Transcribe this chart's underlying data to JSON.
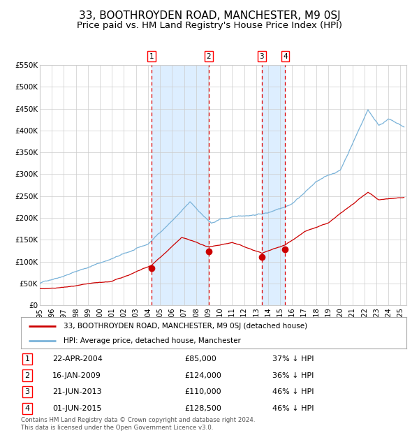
{
  "title": "33, BOOTHROYDEN ROAD, MANCHESTER, M9 0SJ",
  "subtitle": "Price paid vs. HM Land Registry's House Price Index (HPI)",
  "legend_label_red": "33, BOOTHROYDEN ROAD, MANCHESTER, M9 0SJ (detached house)",
  "legend_label_blue": "HPI: Average price, detached house, Manchester",
  "footer_line1": "Contains HM Land Registry data © Crown copyright and database right 2024.",
  "footer_line2": "This data is licensed under the Open Government Licence v3.0.",
  "transactions": [
    {
      "num": 1,
      "date": "22-APR-2004",
      "price": 85000,
      "pct": "37% ↓ HPI"
    },
    {
      "num": 2,
      "date": "16-JAN-2009",
      "price": 124000,
      "pct": "36% ↓ HPI"
    },
    {
      "num": 3,
      "date": "21-JUN-2013",
      "price": 110000,
      "pct": "46% ↓ HPI"
    },
    {
      "num": 4,
      "date": "01-JUN-2015",
      "price": 128500,
      "pct": "46% ↓ HPI"
    }
  ],
  "transaction_dates_decimal": [
    2004.31,
    2009.04,
    2013.47,
    2015.42
  ],
  "transaction_prices": [
    85000,
    124000,
    110000,
    128500
  ],
  "ylim": [
    0,
    550000
  ],
  "xlim_start": 1995.0,
  "xlim_end": 2025.5,
  "yticks": [
    0,
    50000,
    100000,
    150000,
    200000,
    250000,
    300000,
    350000,
    400000,
    450000,
    500000,
    550000
  ],
  "ytick_labels": [
    "£0",
    "£50K",
    "£100K",
    "£150K",
    "£200K",
    "£250K",
    "£300K",
    "£350K",
    "£400K",
    "£450K",
    "£500K",
    "£550K"
  ],
  "xticks": [
    1995,
    1996,
    1997,
    1998,
    1999,
    2000,
    2001,
    2002,
    2003,
    2004,
    2005,
    2006,
    2007,
    2008,
    2009,
    2010,
    2011,
    2012,
    2013,
    2014,
    2015,
    2016,
    2017,
    2018,
    2019,
    2020,
    2021,
    2022,
    2023,
    2024,
    2025
  ],
  "hpi_color": "#7ab3d9",
  "price_color": "#cc0000",
  "dashed_line_color": "#dd0000",
  "shade_color": "#ddeeff",
  "grid_color": "#cccccc",
  "background_color": "#ffffff",
  "title_fontsize": 11,
  "subtitle_fontsize": 9.5
}
